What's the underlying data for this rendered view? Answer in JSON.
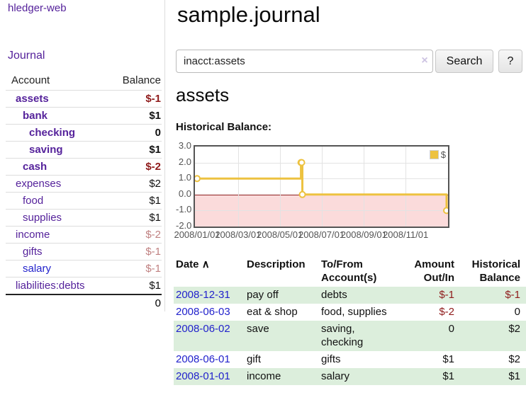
{
  "colors": {
    "purple": "#55229b",
    "blue": "#2222cc",
    "neg_strong": "#8f1b1b",
    "neg_muted": "#c08181",
    "row_green": "#dceedc"
  },
  "app": {
    "brand": "hledger-web",
    "nav_journal": "Journal"
  },
  "sidebar": {
    "header": {
      "account": "Account",
      "balance": "Balance"
    },
    "accounts": [
      {
        "label": "assets",
        "level": 0,
        "bold": true,
        "balance": "$-1",
        "neg": "strong",
        "link": "purple"
      },
      {
        "label": "bank",
        "level": 1,
        "bold": true,
        "balance": "$1",
        "neg": "none",
        "link": "purple"
      },
      {
        "label": "checking",
        "level": 2,
        "bold": true,
        "balance": "0",
        "neg": "none",
        "link": "purple"
      },
      {
        "label": "saving",
        "level": 2,
        "bold": true,
        "balance": "$1",
        "neg": "none",
        "link": "purple"
      },
      {
        "label": "cash",
        "level": 1,
        "bold": true,
        "balance": "$-2",
        "neg": "strong",
        "link": "purple"
      },
      {
        "label": "expenses",
        "level": 0,
        "bold": false,
        "balance": "$2",
        "neg": "none",
        "link": "purple"
      },
      {
        "label": "food",
        "level": 1,
        "bold": false,
        "balance": "$1",
        "neg": "none",
        "link": "purple"
      },
      {
        "label": "supplies",
        "level": 1,
        "bold": false,
        "balance": "$1",
        "neg": "none",
        "link": "purple"
      },
      {
        "label": "income",
        "level": 0,
        "bold": false,
        "balance": "$-2",
        "neg": "muted",
        "link": "purple"
      },
      {
        "label": "gifts",
        "level": 1,
        "bold": false,
        "balance": "$-1",
        "neg": "muted",
        "link": "purple"
      },
      {
        "label": "salary",
        "level": 1,
        "bold": false,
        "balance": "$-1",
        "neg": "muted",
        "link": "blue"
      },
      {
        "label": "liabilities:debts",
        "level": 0,
        "bold": false,
        "balance": "$1",
        "neg": "none",
        "link": "purple"
      }
    ],
    "total": "0"
  },
  "main": {
    "title": "sample.journal",
    "search": {
      "value": "inacct:assets",
      "clear_icon": "×",
      "search_button": "Search",
      "help_button": "?"
    },
    "account_heading": "assets",
    "chart_label": "Historical Balance:"
  },
  "chart_data": {
    "type": "line",
    "step": true,
    "title": "Historical Balance:",
    "series": [
      {
        "name": "$",
        "color": "#edc240",
        "points": [
          [
            "2008-01-01",
            1
          ],
          [
            "2008-06-01",
            2
          ],
          [
            "2008-06-02",
            2
          ],
          [
            "2008-06-03",
            0
          ],
          [
            "2008-12-31",
            -1
          ]
        ]
      }
    ],
    "x_range": [
      "2008-01-01",
      "2008-12-31"
    ],
    "ylim": [
      -2,
      3
    ],
    "y_ticks": [
      3.0,
      2.0,
      1.0,
      0.0,
      -1.0,
      -2.0
    ],
    "x_ticks": [
      "2008/01/01",
      "2008/03/01",
      "2008/05/01",
      "2008/07/01",
      "2008/09/01",
      "2008/11/01"
    ],
    "grid": true,
    "zero_line_color": "#8d1f1f",
    "negative_region_color": "#fbdbdb",
    "legend": {
      "label": "$",
      "position": "top-right"
    }
  },
  "register": {
    "columns": [
      "Date",
      "Description",
      "To/From Account(s)",
      "Amount Out/In",
      "Historical Balance"
    ],
    "sort_icon": "∧",
    "rows": [
      {
        "date": "2008-12-31",
        "description": "pay off",
        "accounts": "debts",
        "amount": "$-1",
        "balance": "$-1"
      },
      {
        "date": "2008-06-03",
        "description": "eat & shop",
        "accounts": "food, supplies",
        "amount": "$-2",
        "balance": "0"
      },
      {
        "date": "2008-06-02",
        "description": "save",
        "accounts": "saving,\nchecking",
        "amount": "0",
        "balance": "$2"
      },
      {
        "date": "2008-06-01",
        "description": "gift",
        "accounts": "gifts",
        "amount": "$1",
        "balance": "$2"
      },
      {
        "date": "2008-01-01",
        "description": "income",
        "accounts": "salary",
        "amount": "$1",
        "balance": "$1"
      }
    ]
  }
}
